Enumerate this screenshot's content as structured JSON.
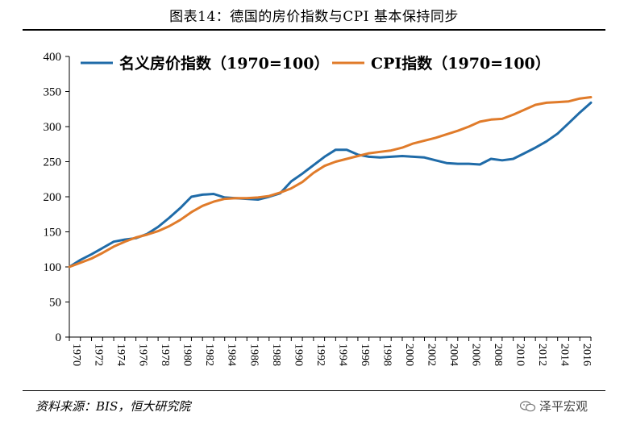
{
  "title": "图表14：德国的房价指数与CPI 基本保持同步",
  "source": "资料来源：BIS，恒大研究院",
  "watermark": "泽平宏观",
  "watermark_icon": "wechat-icon",
  "colors": {
    "house": "#1F6BA8",
    "cpi": "#E07B2A",
    "axis": "#000000"
  },
  "chart_data": {
    "type": "line",
    "title": "",
    "xlabel": "",
    "ylabel": "",
    "ylim": [
      0,
      400
    ],
    "yticks": [
      0,
      50,
      100,
      150,
      200,
      250,
      300,
      350,
      400
    ],
    "xlim": [
      1970,
      2017
    ],
    "xticks": [
      "1970",
      "1972",
      "1974",
      "1976",
      "1978",
      "1980",
      "1982",
      "1984",
      "1986",
      "1988",
      "1990",
      "1992",
      "1994",
      "1996",
      "1998",
      "2000",
      "2002",
      "2004",
      "2006",
      "2008",
      "2010",
      "2012",
      "2014",
      "2016"
    ],
    "grid": false,
    "legend": "top",
    "x": [
      1970,
      1971,
      1972,
      1973,
      1974,
      1975,
      1976,
      1977,
      1978,
      1979,
      1980,
      1981,
      1982,
      1983,
      1984,
      1985,
      1986,
      1987,
      1988,
      1989,
      1990,
      1991,
      1992,
      1993,
      1994,
      1995,
      1996,
      1997,
      1998,
      1999,
      2000,
      2001,
      2002,
      2003,
      2004,
      2005,
      2006,
      2007,
      2008,
      2009,
      2010,
      2011,
      2012,
      2013,
      2014,
      2015,
      2016,
      2017
    ],
    "series": [
      {
        "name": "名义房价指数（1970=100）",
        "color": "#1F6BA8",
        "values": [
          100,
          110,
          118,
          127,
          136,
          139,
          141,
          147,
          157,
          170,
          184,
          200,
          203,
          204,
          199,
          198,
          197,
          196,
          200,
          205,
          222,
          233,
          245,
          257,
          267,
          267,
          260,
          257,
          256,
          257,
          258,
          257,
          256,
          252,
          248,
          247,
          247,
          246,
          254,
          252,
          254,
          262,
          270,
          279,
          290,
          305,
          320,
          334
        ]
      },
      {
        "name": "CPI指数（1970=100）",
        "color": "#E07B2A",
        "values": [
          100,
          106,
          112,
          120,
          129,
          136,
          142,
          146,
          151,
          158,
          167,
          178,
          187,
          193,
          197,
          198,
          198,
          199,
          201,
          206,
          212,
          221,
          234,
          244,
          250,
          254,
          258,
          262,
          264,
          266,
          270,
          276,
          280,
          284,
          289,
          294,
          300,
          307,
          310,
          311,
          317,
          324,
          331,
          334,
          335,
          336,
          340,
          342
        ]
      }
    ]
  }
}
